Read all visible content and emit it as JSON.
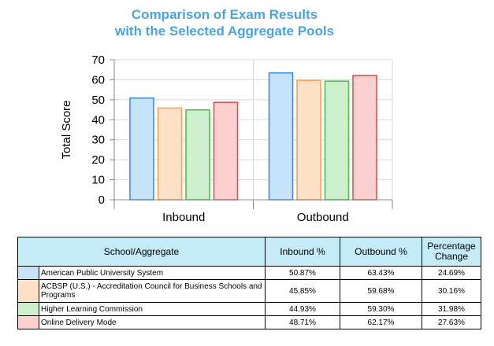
{
  "chart_data": {
    "type": "bar",
    "title_lines": [
      "Comparison of Exam Results",
      "with the Selected Aggregate Pools"
    ],
    "categories": [
      "Inbound",
      "Outbound"
    ],
    "series": [
      {
        "name": "American Public University System",
        "values": [
          50.87,
          63.43
        ],
        "fill": "#c6e2f8",
        "stroke": "#3d8fdb"
      },
      {
        "name": "ACBSP (U.S.) - Accreditation Council for Business Schools and Programs",
        "values": [
          45.85,
          59.68
        ],
        "fill": "#fde0c6",
        "stroke": "#f5a55a"
      },
      {
        "name": "Higher Learning Commission",
        "values": [
          44.93,
          59.3
        ],
        "fill": "#ccf0cc",
        "stroke": "#4dbf4d"
      },
      {
        "name": "Online Delivery Mode",
        "values": [
          48.71,
          62.17
        ],
        "fill": "#fdd0d0",
        "stroke": "#e05050"
      }
    ],
    "ylabel": "Total Score",
    "xlabel": "",
    "ylim": [
      0,
      70
    ],
    "yticks": [
      "0",
      "10",
      "20",
      "30",
      "40",
      "50",
      "60",
      "70"
    ],
    "grid": true
  },
  "table": {
    "headers": [
      "School/Aggregate",
      "Inbound %",
      "Outbound %",
      "Percentage Change"
    ],
    "rows": [
      {
        "name": "American Public University System",
        "inbound": "50.87%",
        "outbound": "63.43%",
        "change": "24.69%",
        "color": "#c6e2f8"
      },
      {
        "name": "ACBSP (U.S.) - Accreditation Council for Business Schools and Programs",
        "inbound": "45.85%",
        "outbound": "59.68%",
        "change": "30.16%",
        "color": "#fde0c6"
      },
      {
        "name": "Higher Learning Commission",
        "inbound": "44.93%",
        "outbound": "59.30%",
        "change": "31.98%",
        "color": "#ccf0cc"
      },
      {
        "name": "Online Delivery Mode",
        "inbound": "48.71%",
        "outbound": "62.17%",
        "change": "27.63%",
        "color": "#fdd0d0"
      }
    ]
  }
}
